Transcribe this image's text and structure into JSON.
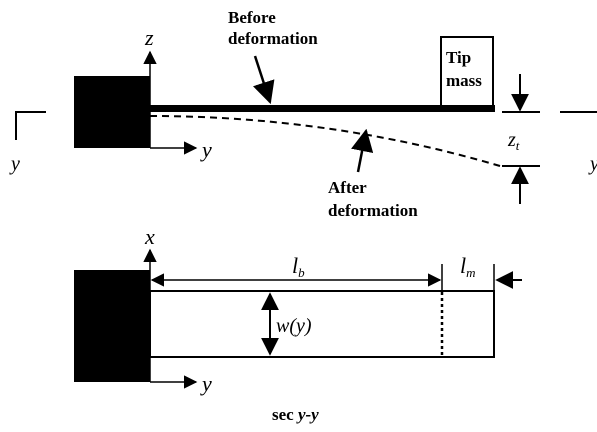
{
  "top_view": {
    "axis_z": "z",
    "axis_y": "y",
    "before_label_line1": "Before",
    "before_label_line2": "deformation",
    "after_label_line1": "After",
    "after_label_line2": "deformation",
    "tip_mass_line1": "Tip",
    "tip_mass_line2": "mass",
    "tip_disp_main": "z",
    "tip_disp_sub": "t",
    "section_mark_left": "y",
    "section_mark_right": "y"
  },
  "bottom_view": {
    "axis_x": "x",
    "axis_y": "y",
    "beam_length_main": "l",
    "beam_length_sub": "b",
    "mass_length_main": "l",
    "mass_length_sub": "m",
    "width_label": "w(y)",
    "section_caption_prefix": "sec ",
    "section_caption_var": "y-y"
  }
}
